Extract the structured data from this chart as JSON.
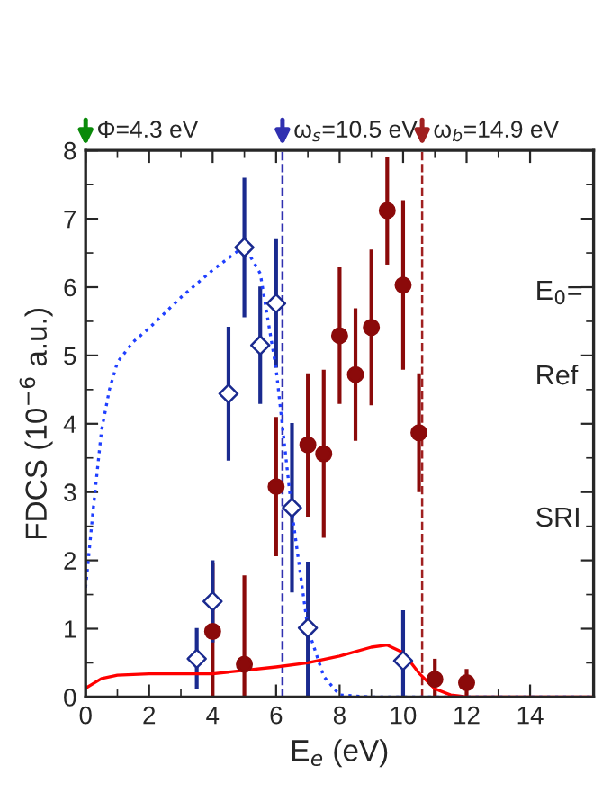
{
  "chart_data": {
    "type": "scatter",
    "xlabel": "E$_{e}$ (eV)",
    "ylabel": "FDCS (10$^{−6}$ a.u.)",
    "xlim": [
      0,
      16
    ],
    "xticks": [
      0,
      2,
      4,
      6,
      8,
      10,
      12,
      14
    ],
    "ylim": [
      0,
      8
    ],
    "yticks": [
      0,
      1,
      2,
      3,
      4,
      5,
      6,
      7,
      8
    ],
    "grid": false,
    "legend": false,
    "series": [
      {
        "marker": "circle",
        "color": "#8b0a0a",
        "x": [
          4,
          5,
          6,
          7,
          7.5,
          8,
          8.5,
          9,
          9.5,
          10,
          10.5,
          11,
          12
        ],
        "values": [
          0.96,
          0.48,
          3.08,
          3.69,
          3.56,
          5.29,
          4.72,
          5.41,
          7.12,
          6.03,
          3.87,
          0.26,
          0.21
        ],
        "errors": [
          [
            0,
            1.96
          ],
          [
            0,
            1.78
          ],
          1.02,
          1.05,
          1.23,
          1.0,
          0.97,
          1.14,
          0.79,
          1.24,
          0.87,
          0.3,
          0.2
        ]
      },
      {
        "marker": "diamond",
        "color": "#1a2a8f",
        "x": [
          3.5,
          4,
          4.5,
          5,
          5.5,
          6,
          6.5,
          7,
          10
        ],
        "values": [
          0.56,
          1.4,
          4.44,
          6.58,
          5.15,
          5.76,
          2.77,
          1.01,
          0.53
        ],
        "errors": [
          0.45,
          0.6,
          0.98,
          1.02,
          0.86,
          0.94,
          1.24,
          [
            0,
            1.98
          ],
          [
            0,
            1.27
          ]
        ]
      },
      {
        "type": "line",
        "line_style": "solid",
        "color": "#ff0000",
        "x": [
          0,
          0.5,
          1,
          2,
          4,
          6,
          7,
          8,
          9,
          9.5,
          10,
          10.5,
          11,
          11.5,
          12,
          16
        ],
        "values": [
          0.13,
          0.27,
          0.32,
          0.34,
          0.34,
          0.44,
          0.5,
          0.6,
          0.73,
          0.76,
          0.65,
          0.35,
          0.12,
          0.03,
          0,
          0
        ]
      },
      {
        "type": "line",
        "line_style": "dotted",
        "color": "#1f3fff",
        "x": [
          0,
          0.25,
          0.5,
          0.75,
          1,
          1.5,
          2,
          3,
          4,
          5,
          5.5,
          6,
          6.5,
          7,
          7.5,
          8,
          9,
          16
        ],
        "values": [
          1.6,
          2.8,
          3.9,
          4.5,
          4.9,
          5.2,
          5.4,
          5.85,
          6.25,
          6.6,
          6.2,
          4.8,
          2.7,
          1.0,
          0.3,
          0.03,
          0,
          0
        ]
      }
    ],
    "ref_lines": [
      {
        "axis": "x",
        "value": 6.2,
        "color": "#3030b0",
        "line_style": "dashed"
      },
      {
        "axis": "x",
        "value": 10.6,
        "color": "#a02020",
        "line_style": "dashed"
      }
    ],
    "annotations": [
      "Φ=4.3 eV",
      "ω$_{s}$=10.5 eV",
      "ω$_{b}$=14.9 eV",
      "E$_{0}$=",
      "Ref",
      "SRI"
    ]
  }
}
